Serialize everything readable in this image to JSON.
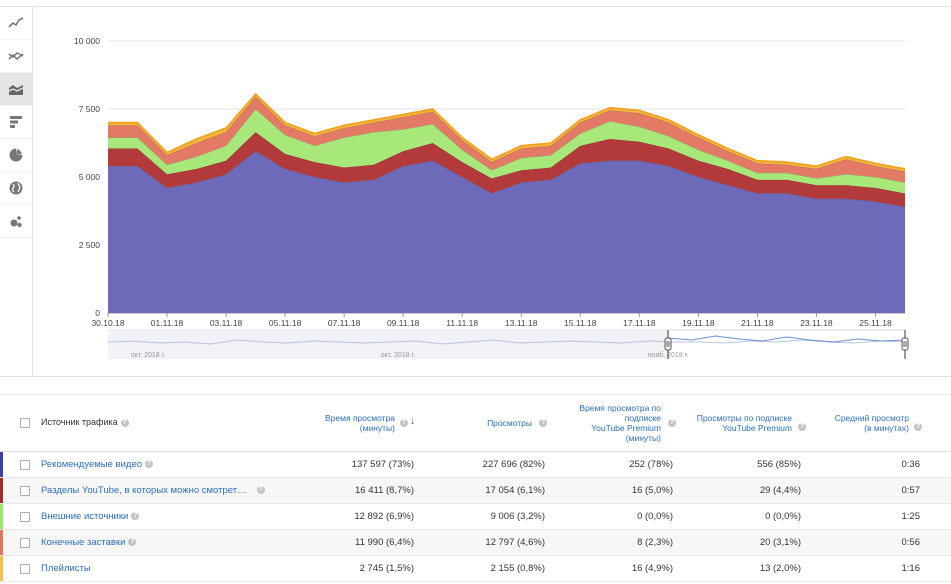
{
  "sidebar": {
    "buttons": [
      {
        "name": "line-chart-icon",
        "active": false
      },
      {
        "name": "multi-line-chart-icon",
        "active": false
      },
      {
        "name": "stacked-area-chart-icon",
        "active": true
      },
      {
        "name": "bar-chart-icon",
        "active": false
      },
      {
        "name": "pie-chart-icon",
        "active": false
      },
      {
        "name": "globe-icon",
        "active": false
      },
      {
        "name": "bubble-chart-icon",
        "active": false
      }
    ]
  },
  "chart_data": {
    "type": "area",
    "stacked": true,
    "yticks": [
      "0",
      "2 500",
      "5 000",
      "7 500",
      "10 000"
    ],
    "ylim": [
      0,
      10000
    ],
    "xlabels": [
      "30.10.18",
      "01.11.18",
      "03.11.18",
      "05.11.18",
      "07.11.18",
      "09.11.18",
      "11.11.18",
      "13.11.18",
      "15.11.18",
      "17.11.18",
      "19.11.18",
      "21.11.18",
      "23.11.18",
      "25.11.18"
    ],
    "navigator_labels": [
      "окт. 2018 г.",
      "окт. 2018 г.",
      "нояб. 2018 г."
    ],
    "series": [
      {
        "name": "Рекомендуемые видео",
        "color": "#6c6ab9",
        "values": [
          5400,
          5400,
          4600,
          4800,
          5100,
          5950,
          5300,
          5000,
          4800,
          4900,
          5400,
          5600,
          5000,
          4400,
          4800,
          4900,
          5500,
          5600,
          5600,
          5400,
          5000,
          4700,
          4400,
          4400,
          4200,
          4200,
          4100,
          3900
        ]
      },
      {
        "name": "Разделы YouTube, в которых можно смотреть видео на главной странице",
        "color": "#b33a3a",
        "values": [
          650,
          650,
          500,
          500,
          500,
          700,
          550,
          550,
          550,
          550,
          550,
          650,
          550,
          550,
          450,
          450,
          650,
          800,
          700,
          650,
          600,
          600,
          500,
          500,
          500,
          500,
          500,
          500
        ]
      },
      {
        "name": "Внешние источники",
        "color": "#a8e87a",
        "values": [
          400,
          400,
          350,
          450,
          550,
          850,
          700,
          600,
          1100,
          1200,
          800,
          700,
          450,
          300,
          450,
          450,
          450,
          650,
          550,
          450,
          400,
          300,
          250,
          250,
          250,
          400,
          400,
          400
        ]
      },
      {
        "name": "Конечные заставки",
        "color": "#e27a65",
        "values": [
          450,
          450,
          350,
          500,
          500,
          450,
          350,
          350,
          350,
          350,
          450,
          450,
          350,
          300,
          350,
          350,
          400,
          400,
          500,
          500,
          450,
          350,
          350,
          300,
          350,
          550,
          400,
          400
        ]
      },
      {
        "name": "Плейлисты",
        "color": "#f2b43a",
        "values": [
          100,
          100,
          100,
          150,
          150,
          100,
          100,
          100,
          100,
          100,
          100,
          100,
          100,
          100,
          100,
          100,
          100,
          100,
          100,
          100,
          100,
          100,
          100,
          100,
          100,
          100,
          100,
          100
        ]
      }
    ]
  },
  "table": {
    "header": {
      "source": "Источник трафика",
      "watch_time_1": "Время просмотра",
      "watch_time_2": "(минуты)",
      "views": "Просмотры",
      "premium_time_1": "Время просмотра по",
      "premium_time_2": "подписке",
      "premium_time_3": "YouTube Premium",
      "premium_time_4": "(минуты)",
      "premium_views_1": "Просмотры по подписке",
      "premium_views_2": "YouTube Premium",
      "avg_1": "Средний просмотр",
      "avg_2": "(в минутах)"
    },
    "rows": [
      {
        "source": "Рекомендуемые видео",
        "color": "#3f3fa3",
        "watch": "137 597 (73%)",
        "views": "227 696 (82%)",
        "ptime": "252 (78%)",
        "pviews": "556 (85%)",
        "avg": "0:36"
      },
      {
        "source": "Разделы YouTube, в которых можно смотрет…",
        "color": "#a52a2a",
        "watch": "16 411 (8,7%)",
        "views": "17 054 (6,1%)",
        "ptime": "16 (5,0%)",
        "pviews": "29 (4,4%)",
        "avg": "0:57"
      },
      {
        "source": "Внешние источники",
        "color": "#9be36b",
        "watch": "12 892 (6,9%)",
        "views": "9 006 (3,2%)",
        "ptime": "0 (0,0%)",
        "pviews": "0 (0,0%)",
        "avg": "1:25"
      },
      {
        "source": "Конечные заставки",
        "color": "#e0755f",
        "watch": "11 990 (6,4%)",
        "views": "12 797 (4,6%)",
        "ptime": "8 (2,3%)",
        "pviews": "20 (3,1%)",
        "avg": "0:56"
      },
      {
        "source": "Плейлисты",
        "color": "#f2c14e",
        "watch": "2 745 (1,5%)",
        "views": "2 155 (0,8%)",
        "ptime": "16 (4,9%)",
        "pviews": "13 (2,0%)",
        "avg": "1:16"
      }
    ]
  }
}
